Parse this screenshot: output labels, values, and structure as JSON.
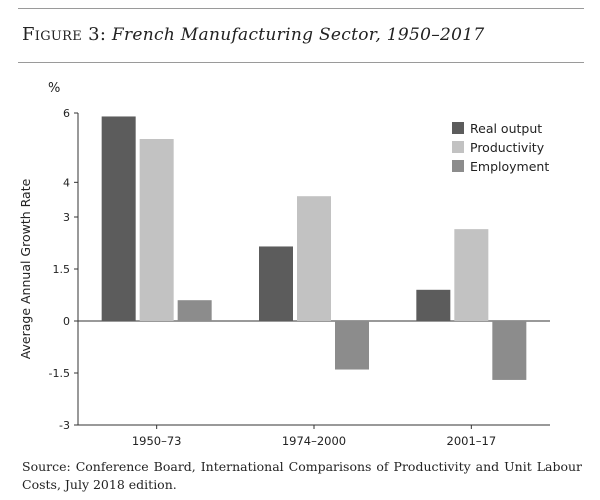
{
  "figure": {
    "label": "Figure 3:",
    "title": "French Manufacturing Sector, 1950–2017",
    "source": "Source: Conference Board, International Comparisons of Productivity and Unit Labour Costs, July 2018 edition."
  },
  "chart_data": {
    "type": "bar",
    "title": "French Manufacturing Sector, 1950–2017",
    "ylabel": "Average Annual Growth Rate",
    "yunit": "%",
    "xlabel": "",
    "ylim": [
      -3,
      6
    ],
    "yticks": [
      6,
      4,
      3,
      1.5,
      0,
      -1.5,
      -3
    ],
    "ytick_labels": [
      "6",
      "4",
      "3",
      "1.5",
      "0",
      "-1.5",
      "-3"
    ],
    "categories": [
      "1950–73",
      "1974–2000",
      "2001–17"
    ],
    "series": [
      {
        "name": "Real output",
        "color": "#5c5c5c",
        "values": [
          5.9,
          2.15,
          0.9
        ]
      },
      {
        "name": "Productivity",
        "color": "#c2c2c2",
        "values": [
          5.25,
          3.6,
          2.65
        ]
      },
      {
        "name": "Employment",
        "color": "#8c8c8c",
        "values": [
          0.6,
          -1.4,
          -1.7
        ]
      }
    ],
    "grid": false,
    "legend_position": "top-right"
  }
}
